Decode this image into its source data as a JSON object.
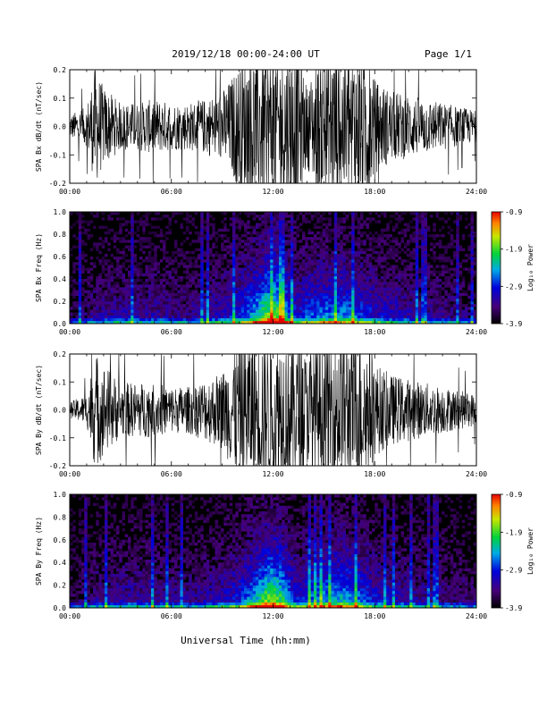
{
  "header": {
    "title": "2019/12/18  00:00-24:00 UT",
    "page": "Page 1/1"
  },
  "xlabel": "Universal Time (hh:mm)",
  "chart_data": [
    {
      "type": "line",
      "ylabel": "SPA Bx dB/dt (nT/sec)",
      "xlim": [
        0,
        24
      ],
      "ylim": [
        -0.2,
        0.2
      ],
      "x_ticks": [
        "00:00",
        "06:00",
        "12:00",
        "18:00",
        "24:00"
      ],
      "y_ticks": [
        "-0.2",
        "-0.1",
        "0.0",
        "0.1",
        "0.2"
      ],
      "series": [
        {
          "x": [
            0,
            1,
            1.5,
            2,
            3,
            4,
            5,
            6,
            7,
            8,
            9,
            9.5,
            10,
            10.5,
            11,
            12,
            13,
            13.5,
            14,
            14.5,
            15,
            15.5,
            16,
            16.5,
            17,
            17.5,
            18,
            19,
            20,
            21,
            22,
            23,
            24
          ],
          "amplitude": [
            0.03,
            0.05,
            0.15,
            0.1,
            0.06,
            0.06,
            0.07,
            0.06,
            0.06,
            0.07,
            0.09,
            0.12,
            0.16,
            0.2,
            0.2,
            0.2,
            0.2,
            0.2,
            0.1,
            0.16,
            0.2,
            0.2,
            0.2,
            0.2,
            0.2,
            0.2,
            0.12,
            0.09,
            0.08,
            0.07,
            0.06,
            0.05,
            0.04
          ]
        }
      ]
    },
    {
      "type": "heatmap",
      "ylabel": "SPA Bx Freq (Hz)",
      "xlim": [
        0,
        24
      ],
      "ylim": [
        0.0,
        1.0
      ],
      "x_ticks": [
        "00:00",
        "06:00",
        "12:00",
        "18:00",
        "24:00"
      ],
      "y_ticks": [
        "0.0",
        "0.2",
        "0.4",
        "0.6",
        "0.8",
        "1.0"
      ],
      "colorbar": {
        "label": "Log₁₀ Power",
        "range": [
          -3.9,
          -0.9
        ],
        "ticks": [
          "-0.9",
          "-1.9",
          "-2.9",
          "-3.9"
        ]
      },
      "activity": {
        "x": [
          0,
          1.5,
          3,
          5,
          7,
          8,
          9,
          10,
          11,
          11.5,
          12,
          12.5,
          13,
          13.5,
          14,
          15,
          16,
          17,
          18,
          20,
          22,
          24
        ],
        "value": [
          0.1,
          0.2,
          0.25,
          0.25,
          0.2,
          0.25,
          0.3,
          0.4,
          0.6,
          0.8,
          0.85,
          0.75,
          0.5,
          0.35,
          0.45,
          0.5,
          0.55,
          0.45,
          0.35,
          0.25,
          0.2,
          0.15
        ]
      }
    },
    {
      "type": "line",
      "ylabel": "SPA By dB/dt (nT/sec)",
      "xlim": [
        0,
        24
      ],
      "ylim": [
        -0.2,
        0.2
      ],
      "x_ticks": [
        "00:00",
        "06:00",
        "12:00",
        "18:00",
        "24:00"
      ],
      "y_ticks": [
        "-0.2",
        "-0.1",
        "0.0",
        "0.1",
        "0.2"
      ],
      "series": [
        {
          "x": [
            0,
            1,
            1.5,
            2,
            3,
            4,
            5,
            6,
            7,
            8,
            9,
            9.5,
            10,
            10.5,
            11,
            12,
            13,
            13.5,
            14,
            14.5,
            15,
            15.5,
            16,
            16.5,
            17,
            17.5,
            18,
            19,
            20,
            21,
            22,
            23,
            24
          ],
          "amplitude": [
            0.02,
            0.04,
            0.15,
            0.12,
            0.07,
            0.07,
            0.07,
            0.06,
            0.06,
            0.08,
            0.1,
            0.14,
            0.2,
            0.2,
            0.2,
            0.2,
            0.2,
            0.2,
            0.14,
            0.2,
            0.2,
            0.2,
            0.2,
            0.2,
            0.2,
            0.18,
            0.12,
            0.09,
            0.08,
            0.07,
            0.06,
            0.05,
            0.04
          ]
        }
      ]
    },
    {
      "type": "heatmap",
      "ylabel": "SPA By Freq (Hz)",
      "xlim": [
        0,
        24
      ],
      "ylim": [
        0.0,
        1.0
      ],
      "x_ticks": [
        "00:00",
        "06:00",
        "12:00",
        "18:00",
        "24:00"
      ],
      "y_ticks": [
        "0.0",
        "0.2",
        "0.4",
        "0.6",
        "0.8",
        "1.0"
      ],
      "colorbar": {
        "label": "Log₁₀ Power",
        "range": [
          -3.9,
          -0.9
        ],
        "ticks": [
          "-0.9",
          "-1.9",
          "-2.9",
          "-3.9"
        ]
      },
      "activity": {
        "x": [
          0,
          1.5,
          3,
          5,
          7,
          8,
          9,
          10,
          11,
          11.5,
          12,
          12.5,
          13,
          13.5,
          14,
          15,
          16,
          17,
          18,
          20,
          22,
          24
        ],
        "value": [
          0.1,
          0.2,
          0.25,
          0.25,
          0.2,
          0.25,
          0.3,
          0.4,
          0.6,
          0.8,
          0.85,
          0.75,
          0.5,
          0.35,
          0.45,
          0.55,
          0.6,
          0.5,
          0.35,
          0.25,
          0.2,
          0.15
        ]
      }
    }
  ]
}
